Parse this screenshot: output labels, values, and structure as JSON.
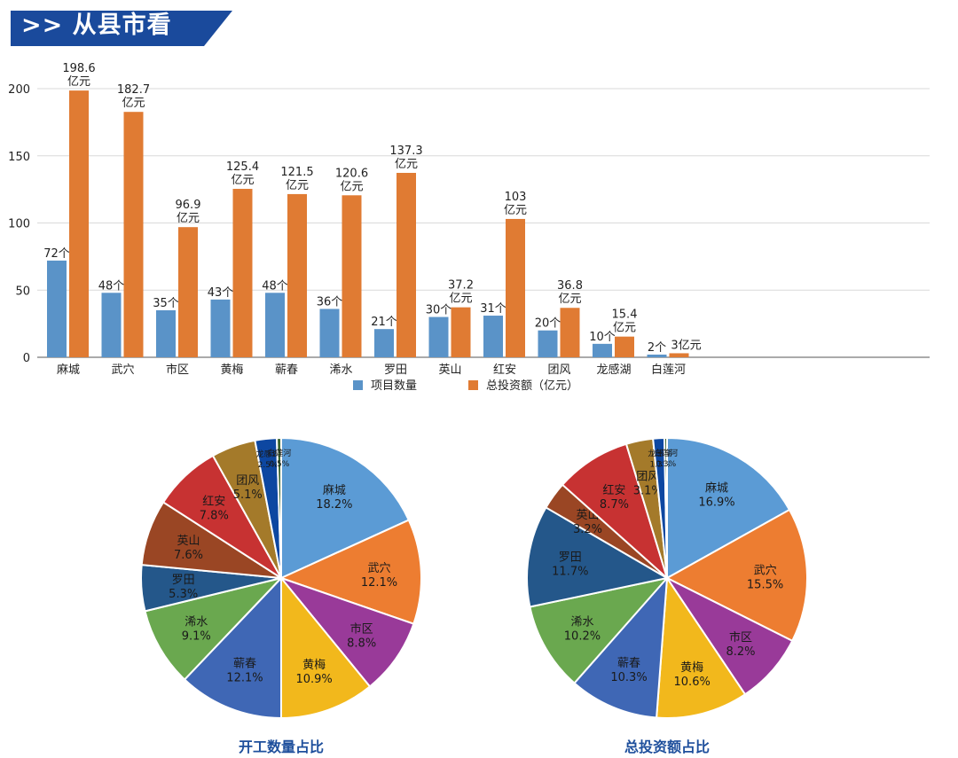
{
  "header": {
    "title": ">> 从县市看"
  },
  "colors": {
    "banner_blue": "#1a4a9c",
    "count_blue": "#5a93c8",
    "invest_orange": "#e07b33",
    "gridline": "#d9d9d9",
    "pie_title_blue": "#1e4f9c"
  },
  "chart_data": [
    {
      "type": "bar",
      "title": "",
      "xlabel": "",
      "ylabel": "",
      "ylim": [
        0,
        200
      ],
      "yticks": [
        0,
        50,
        100,
        150,
        200
      ],
      "grid": true,
      "legend_position": "bottom",
      "categories": [
        "麻城",
        "武穴",
        "市区",
        "黄梅",
        "蕲春",
        "浠水",
        "罗田",
        "英山",
        "红安",
        "团风",
        "龙感湖",
        "白莲河"
      ],
      "groups": [
        [
          0,
          1,
          2
        ],
        [
          3,
          4,
          5
        ],
        [
          6,
          7
        ],
        [
          8,
          9
        ],
        [
          10,
          11
        ]
      ],
      "series": [
        {
          "name": "项目数量",
          "values": [
            72,
            48,
            35,
            43,
            48,
            36,
            21,
            30,
            31,
            20,
            10,
            2
          ],
          "labels": [
            "72个",
            "48个",
            "35个",
            "43个",
            "48个",
            "36个",
            "21个",
            "30个",
            "31个",
            "20个",
            "10个",
            "2个"
          ]
        },
        {
          "name": "总投资额（亿元）",
          "values": [
            198.6,
            182.7,
            96.9,
            125.4,
            121.5,
            120.6,
            137.3,
            37.2,
            103,
            36.8,
            15.4,
            3
          ],
          "labels": [
            "198.6|亿元",
            "182.7|亿元",
            "96.9|亿元",
            "125.4|亿元",
            "121.5|亿元",
            "120.6|亿元",
            "137.3|亿元",
            "37.2|亿元",
            "103|亿元",
            "36.8|亿元",
            "15.4|亿元",
            "3亿元"
          ]
        }
      ]
    },
    {
      "type": "pie",
      "title": "开工数量占比",
      "slices": [
        {
          "label": "麻城",
          "value": 18.2,
          "pct": "18.2%",
          "color": "#5b9bd5"
        },
        {
          "label": "武穴",
          "value": 12.1,
          "pct": "12.1%",
          "color": "#ed7d31"
        },
        {
          "label": "市区",
          "value": 8.8,
          "pct": "8.8%",
          "color": "#993a99"
        },
        {
          "label": "黄梅",
          "value": 10.9,
          "pct": "10.9%",
          "color": "#f2b81c"
        },
        {
          "label": "蕲春",
          "value": 12.1,
          "pct": "12.1%",
          "color": "#3f67b5"
        },
        {
          "label": "浠水",
          "value": 9.1,
          "pct": "9.1%",
          "color": "#6aa84f"
        },
        {
          "label": "罗田",
          "value": 5.3,
          "pct": "5.3%",
          "color": "#24578a"
        },
        {
          "label": "英山",
          "value": 7.6,
          "pct": "7.6%",
          "color": "#9a4624"
        },
        {
          "label": "红安",
          "value": 7.8,
          "pct": "7.8%",
          "color": "#c73232"
        },
        {
          "label": "团风",
          "value": 5.1,
          "pct": "5.1%",
          "color": "#a47a2a"
        },
        {
          "label": "龙感湖",
          "value": 2.5,
          "pct": "2.5%",
          "color": "#0d47a1"
        },
        {
          "label": "白莲河",
          "value": 0.5,
          "pct": "0.5%",
          "color": "#38622c"
        }
      ]
    },
    {
      "type": "pie",
      "title": "总投资额占比",
      "slices": [
        {
          "label": "麻城",
          "value": 16.9,
          "pct": "16.9%",
          "color": "#5b9bd5"
        },
        {
          "label": "武穴",
          "value": 15.5,
          "pct": "15.5%",
          "color": "#ed7d31"
        },
        {
          "label": "市区",
          "value": 8.2,
          "pct": "8.2%",
          "color": "#993a99"
        },
        {
          "label": "黄梅",
          "value": 10.6,
          "pct": "10.6%",
          "color": "#f2b81c"
        },
        {
          "label": "蕲春",
          "value": 10.3,
          "pct": "10.3%",
          "color": "#3f67b5"
        },
        {
          "label": "浠水",
          "value": 10.2,
          "pct": "10.2%",
          "color": "#6aa84f"
        },
        {
          "label": "罗田",
          "value": 11.7,
          "pct": "11.7%",
          "color": "#24578a"
        },
        {
          "label": "英山",
          "value": 3.2,
          "pct": "3.2%",
          "color": "#9a4624"
        },
        {
          "label": "红安",
          "value": 8.7,
          "pct": "8.7%",
          "color": "#c73232"
        },
        {
          "label": "团风",
          "value": 3.1,
          "pct": "3.1%",
          "color": "#a47a2a"
        },
        {
          "label": "龙感湖",
          "value": 1.3,
          "pct": "1.3%",
          "color": "#0d47a1"
        },
        {
          "label": "白莲河",
          "value": 0.3,
          "pct": "0.3%",
          "color": "#38622c"
        }
      ]
    }
  ]
}
